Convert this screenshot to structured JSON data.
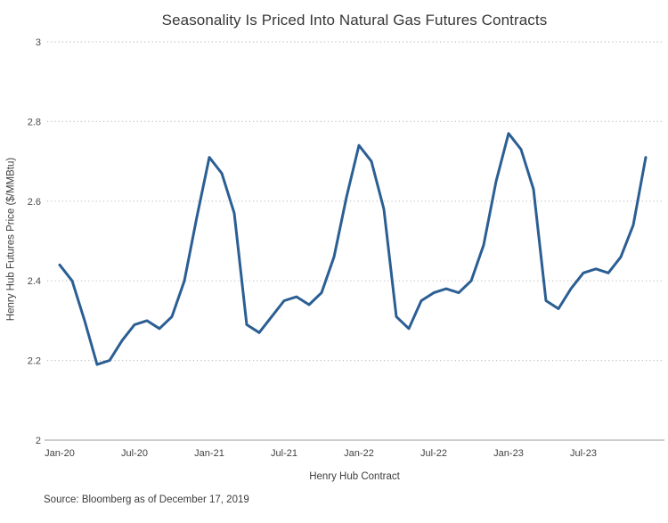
{
  "chart_data": {
    "type": "line",
    "title": "Seasonality Is Priced Into Natural Gas Futures Contracts",
    "xlabel": "Henry Hub Contract",
    "ylabel": "Henry Hub Futures Price ($/MMBtu)",
    "source": "Source: Bloomberg as of December 17, 2019",
    "ylim": [
      2,
      3
    ],
    "y_ticks": [
      2,
      2.2,
      2.4,
      2.6,
      2.8,
      3
    ],
    "x_tick_labels": [
      "Jan-20",
      "Jul-20",
      "Jan-21",
      "Jul-21",
      "Jan-22",
      "Jul-22",
      "Jan-23",
      "Jul-23"
    ],
    "x_tick_month_indices": [
      0,
      6,
      12,
      18,
      24,
      30,
      36,
      42
    ],
    "grid": "horizontal dotted gridlines, no vertical gridlines",
    "legend": "none",
    "axis_color": "#9a9a9a",
    "grid_color": "#c2c2c2",
    "x": [
      "Jan-20",
      "Feb-20",
      "Mar-20",
      "Apr-20",
      "May-20",
      "Jun-20",
      "Jul-20",
      "Aug-20",
      "Sep-20",
      "Oct-20",
      "Nov-20",
      "Dec-20",
      "Jan-21",
      "Feb-21",
      "Mar-21",
      "Apr-21",
      "May-21",
      "Jun-21",
      "Jul-21",
      "Aug-21",
      "Sep-21",
      "Oct-21",
      "Nov-21",
      "Dec-21",
      "Jan-22",
      "Feb-22",
      "Mar-22",
      "Apr-22",
      "May-22",
      "Jun-22",
      "Jul-22",
      "Aug-22",
      "Sep-22",
      "Oct-22",
      "Nov-22",
      "Dec-22",
      "Jan-23",
      "Feb-23",
      "Mar-23",
      "Apr-23",
      "May-23",
      "Jun-23",
      "Jul-23",
      "Aug-23",
      "Sep-23",
      "Oct-23",
      "Nov-23",
      "Dec-23"
    ],
    "series": [
      {
        "name": "Henry Hub Futures Price",
        "color": "#2b5e93",
        "values": [
          2.44,
          2.4,
          2.3,
          2.19,
          2.2,
          2.25,
          2.29,
          2.3,
          2.28,
          2.31,
          2.4,
          2.56,
          2.71,
          2.67,
          2.57,
          2.29,
          2.27,
          2.31,
          2.35,
          2.36,
          2.34,
          2.37,
          2.46,
          2.61,
          2.74,
          2.7,
          2.58,
          2.31,
          2.28,
          2.35,
          2.37,
          2.38,
          2.37,
          2.4,
          2.49,
          2.65,
          2.77,
          2.73,
          2.63,
          2.35,
          2.33,
          2.38,
          2.42,
          2.43,
          2.42,
          2.46,
          2.54,
          2.71
        ]
      }
    ]
  }
}
